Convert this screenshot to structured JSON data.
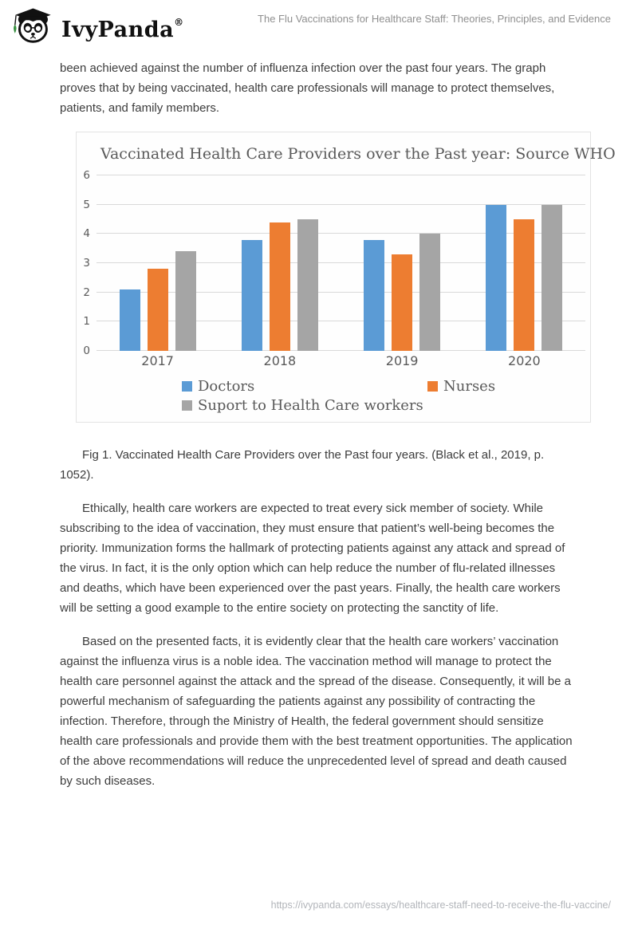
{
  "header": {
    "brand": "IvyPanda",
    "registered": "®",
    "page_title": "The Flu Vaccinations for Healthcare Staff: Theories, Principles, and Evidence"
  },
  "content": {
    "para1": "been achieved against the number of influenza infection over the past four years. The graph proves that by being vaccinated, health care professionals will manage to protect themselves, patients, and family members.",
    "caption": "Fig 1. Vaccinated Health Care Providers over the Past four years. (Black et al., 2019, p. 1052).",
    "para2": "Ethically, health care workers are expected to treat every sick member of society. While subscribing to the idea of vaccination, they must ensure that patient’s well-being becomes the priority. Immunization forms the hallmark of protecting patients against any attack and spread of the virus. In fact, it is the only option which can help reduce the number of flu-related illnesses and deaths, which have been experienced over the past years. Finally, the health care workers will be setting a good example to the entire society on protecting the sanctity of life.",
    "para3": "Based on the presented facts, it is evidently clear that the health care workers’ vaccination against the influenza virus is a noble idea. The vaccination method will manage to protect the health care personnel against the attack and the spread of the disease. Consequently, it will be a powerful mechanism of safeguarding the patients against any possibility of contracting the infection. Therefore, through the Ministry of Health, the federal government should sensitize health care professionals and provide them with the best treatment opportunities. The application of the above recommendations will reduce the unprecedented level of spread and death caused by such diseases."
  },
  "footer": {
    "url": "https://ivypanda.com/essays/healthcare-staff-need-to-receive-the-flu-vaccine/"
  },
  "chart_data": {
    "type": "bar",
    "title": "Vaccinated Health Care Providers over the Past year: Source WHO",
    "categories": [
      "2017",
      "2018",
      "2019",
      "2020"
    ],
    "series": [
      {
        "name": "Doctors",
        "color": "#5B9BD5",
        "values": [
          2.1,
          3.8,
          3.8,
          5.0
        ]
      },
      {
        "name": "Nurses",
        "color": "#ED7D31",
        "values": [
          2.8,
          4.4,
          3.3,
          4.5
        ]
      },
      {
        "name": "Suport to Health Care workers",
        "color": "#A5A5A5",
        "values": [
          3.4,
          4.5,
          4.0,
          5.0
        ]
      }
    ],
    "xlabel": "",
    "ylabel": "",
    "ylim": [
      0,
      6
    ],
    "yticks": [
      0,
      1,
      2,
      3,
      4,
      5,
      6
    ],
    "grid": true,
    "legend_position": "bottom",
    "colors": {
      "gridline": "#d9d9d9",
      "axis_text": "#595959",
      "title_text": "#595959"
    }
  }
}
